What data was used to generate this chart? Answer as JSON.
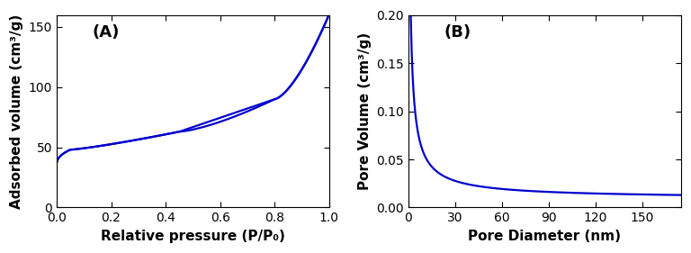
{
  "line_color": "#0000CD",
  "line_width": 1.6,
  "fig_width": 7.68,
  "fig_height": 2.81,
  "panel_A": {
    "label": "(A)",
    "xlabel": "Relative pressure (P/P₀)",
    "ylabel": "Adsorbed volume (cm³/g)",
    "xlim": [
      0.0,
      1.0
    ],
    "ylim": [
      0,
      160
    ],
    "yticks": [
      0,
      50,
      100,
      150
    ],
    "xticks": [
      0.0,
      0.2,
      0.4,
      0.6,
      0.8,
      1.0
    ]
  },
  "panel_B": {
    "label": "(B)",
    "xlabel": "Pore Diameter (nm)",
    "ylabel": "Pore Volume (cm³/g)",
    "xlim": [
      0,
      175
    ],
    "ylim": [
      0.0,
      0.2
    ],
    "yticks": [
      0.0,
      0.05,
      0.1,
      0.15,
      0.2
    ],
    "xticks": [
      0,
      30,
      60,
      90,
      120,
      150
    ]
  },
  "background_color": "#ffffff"
}
